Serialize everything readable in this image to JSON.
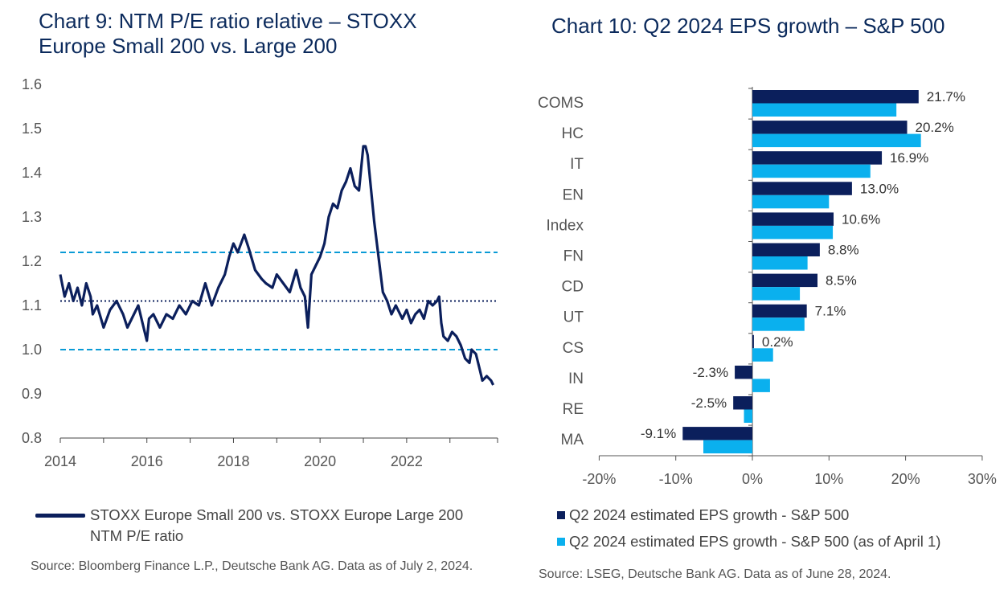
{
  "chart_data": [
    {
      "type": "line",
      "title": "Chart 9: NTM P/E ratio relative – STOXX Europe Small 200 vs. Large 200",
      "x_ticks": [
        "2014",
        "2016",
        "2018",
        "2020",
        "2022"
      ],
      "y_ticks": [
        "1.6",
        "1.5",
        "1.4",
        "1.3",
        "1.2",
        "1.1",
        "1.0",
        "0.9",
        "0.8"
      ],
      "xlim": [
        2014.0,
        2024.1
      ],
      "ylim": [
        0.8,
        1.6
      ],
      "reference_lines": [
        {
          "value": 1.22,
          "style": "dashed",
          "color": "#0a9bd6"
        },
        {
          "value": 1.11,
          "style": "dotted",
          "color": "#0b1f5c"
        },
        {
          "value": 1.0,
          "style": "dashed",
          "color": "#0a9bd6"
        }
      ],
      "series": [
        {
          "name": "STOXX Europe Small 200 vs. STOXX Europe Large 200 NTM P/E ratio",
          "color": "#0b1f5c",
          "x": [
            2014.0,
            2014.1,
            2014.2,
            2014.3,
            2014.4,
            2014.5,
            2014.6,
            2014.7,
            2014.75,
            2014.85,
            2015.0,
            2015.15,
            2015.3,
            2015.45,
            2015.55,
            2015.7,
            2015.8,
            2015.9,
            2016.0,
            2016.05,
            2016.15,
            2016.3,
            2016.45,
            2016.6,
            2016.75,
            2016.9,
            2017.05,
            2017.2,
            2017.35,
            2017.5,
            2017.65,
            2017.8,
            2017.9,
            2018.0,
            2018.1,
            2018.25,
            2018.35,
            2018.5,
            2018.65,
            2018.75,
            2018.9,
            2019.0,
            2019.15,
            2019.3,
            2019.45,
            2019.55,
            2019.65,
            2019.72,
            2019.8,
            2019.9,
            2020.0,
            2020.1,
            2020.2,
            2020.3,
            2020.4,
            2020.5,
            2020.6,
            2020.7,
            2020.8,
            2020.9,
            2021.0,
            2021.05,
            2021.1,
            2021.2,
            2021.25,
            2021.35,
            2021.45,
            2021.55,
            2021.65,
            2021.75,
            2021.9,
            2022.0,
            2022.1,
            2022.2,
            2022.3,
            2022.4,
            2022.5,
            2022.6,
            2022.7,
            2022.75,
            2022.8,
            2022.85,
            2022.95,
            2023.05,
            2023.15,
            2023.25,
            2023.35,
            2023.45,
            2023.5,
            2023.6,
            2023.7,
            2023.75,
            2023.85,
            2023.95,
            2024.0
          ],
          "values": [
            1.17,
            1.12,
            1.15,
            1.11,
            1.14,
            1.1,
            1.15,
            1.12,
            1.08,
            1.1,
            1.05,
            1.09,
            1.11,
            1.08,
            1.05,
            1.08,
            1.1,
            1.06,
            1.02,
            1.07,
            1.08,
            1.05,
            1.08,
            1.07,
            1.1,
            1.08,
            1.11,
            1.1,
            1.15,
            1.1,
            1.14,
            1.17,
            1.21,
            1.24,
            1.22,
            1.26,
            1.23,
            1.18,
            1.16,
            1.15,
            1.14,
            1.17,
            1.15,
            1.13,
            1.18,
            1.14,
            1.12,
            1.05,
            1.17,
            1.19,
            1.21,
            1.24,
            1.3,
            1.33,
            1.32,
            1.36,
            1.38,
            1.41,
            1.37,
            1.36,
            1.46,
            1.46,
            1.44,
            1.34,
            1.29,
            1.21,
            1.13,
            1.11,
            1.08,
            1.1,
            1.07,
            1.09,
            1.06,
            1.08,
            1.09,
            1.07,
            1.11,
            1.1,
            1.11,
            1.12,
            1.06,
            1.03,
            1.02,
            1.04,
            1.03,
            1.01,
            0.98,
            0.97,
            1.0,
            0.99,
            0.95,
            0.93,
            0.94,
            0.93,
            0.92
          ]
        }
      ],
      "legend": "STOXX Europe Small 200 vs. STOXX Europe Large 200 NTM P/E ratio",
      "source": "Source: Bloomberg Finance L.P., Deutsche Bank AG. Data as of July 2, 2024."
    },
    {
      "type": "bar",
      "orientation": "horizontal",
      "title": "Chart 10: Q2 2024 EPS growth – S&P 500",
      "categories": [
        "COMS",
        "HC",
        "IT",
        "EN",
        "Index",
        "FN",
        "CD",
        "UT",
        "CS",
        "IN",
        "RE",
        "MA"
      ],
      "series": [
        {
          "name": "Q2 2024 estimated EPS growth - S&P 500",
          "color": "#0b1f5c",
          "values": [
            21.7,
            20.2,
            16.9,
            13.0,
            10.6,
            8.8,
            8.5,
            7.1,
            0.2,
            -2.3,
            -2.5,
            -9.1
          ],
          "data_labels": [
            "21.7%",
            "20.2%",
            "16.9%",
            "13.0%",
            "10.6%",
            "8.8%",
            "8.5%",
            "7.1%",
            "0.2%",
            "-2.3%",
            "-2.5%",
            "-9.1%"
          ]
        },
        {
          "name": "Q2 2024 estimated EPS growth - S&P 500 (as of April 1)",
          "color": "#0ab0ee",
          "values": [
            18.8,
            22.0,
            15.4,
            10.0,
            10.5,
            7.2,
            6.2,
            6.8,
            2.7,
            2.3,
            -1.1,
            -6.4
          ]
        }
      ],
      "xlim": [
        -20,
        30
      ],
      "x_ticks": [
        "-20%",
        "-10%",
        "0%",
        "10%",
        "20%",
        "30%"
      ],
      "source": "Source: LSEG, Deutsche Bank AG. Data as of June 28, 2024."
    }
  ]
}
